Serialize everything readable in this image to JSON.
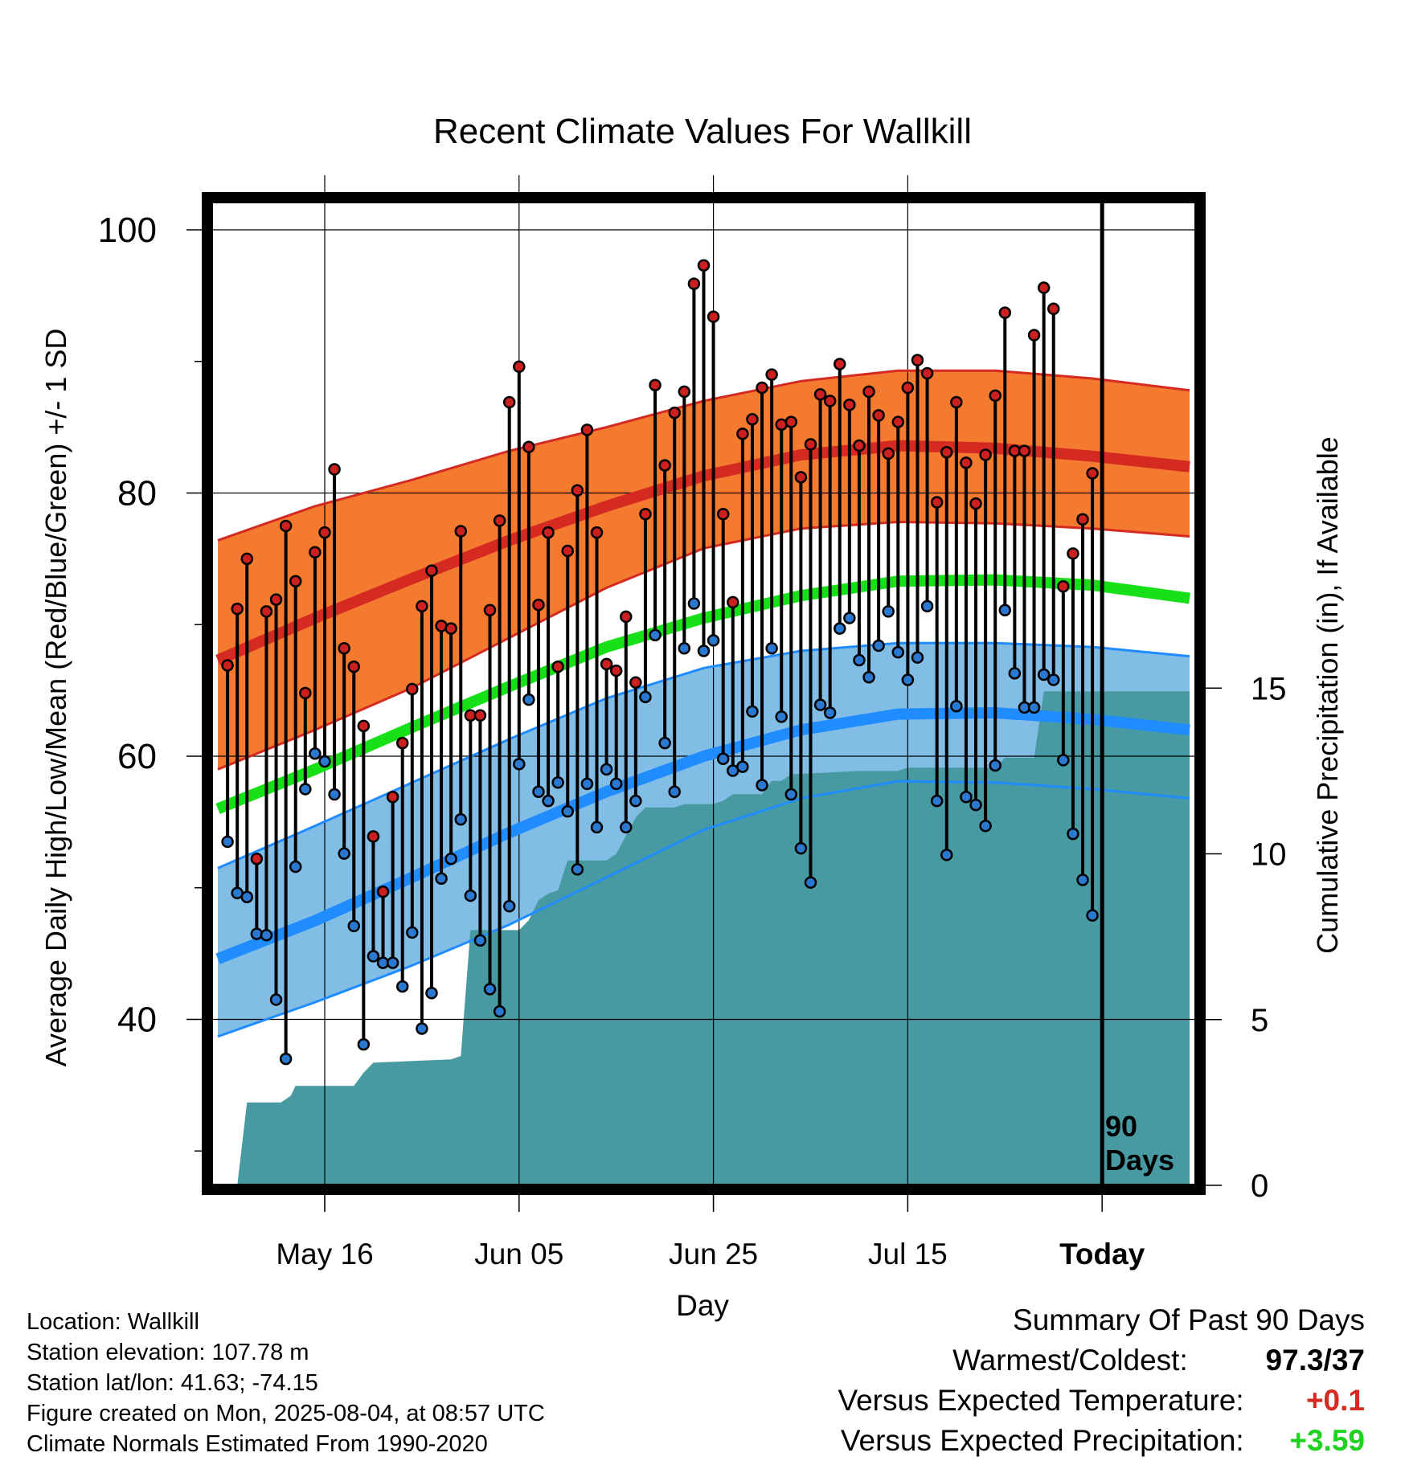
{
  "colors": {
    "high_band": "#f47a30",
    "high_line": "#d42a22",
    "mean_line": "#18e018",
    "low_band": "#82bde6",
    "low_line": "#1f8cff",
    "precip_fill": "#489aa2",
    "high_dot": "#cc1f1f",
    "low_dot": "#2a78d0",
    "temp_anom": "#d42a22",
    "precip_anom": "#1fd21f"
  },
  "chart_data": {
    "type": "line",
    "title": "Recent Climate Values For Wallkill",
    "xlabel": "Day",
    "ylabel_left": "Average Daily High/Low/Mean (Red/Blue/Green) +/- 1 SD",
    "ylabel_right": "Cumulative Precipitation (in), If Available",
    "x_ticks": [
      {
        "day": 11,
        "label": "May 16"
      },
      {
        "day": 31,
        "label": "Jun 05"
      },
      {
        "day": 51,
        "label": "Jun 25"
      },
      {
        "day": 71,
        "label": "Jul 15"
      },
      {
        "day": 91,
        "label": "Today"
      }
    ],
    "xlim": [
      0,
      100
    ],
    "ylim_left": [
      26,
      103
    ],
    "y_ticks_left": [
      40,
      60,
      80,
      100
    ],
    "y_minor_left": [
      30,
      50,
      70,
      90
    ],
    "ylim_right": [
      0,
      15
    ],
    "y_ticks_right": [
      0,
      5,
      10,
      15
    ],
    "today_marker": {
      "day": 91,
      "label_line1": "90",
      "label_line2": "Days"
    },
    "normals": {
      "days": [
        0,
        10,
        20,
        30,
        40,
        50,
        60,
        70,
        80,
        90,
        100
      ],
      "mean_high": [
        67.3,
        70.5,
        73.5,
        76.4,
        79.0,
        81.3,
        82.9,
        83.6,
        83.4,
        82.8,
        82.0
      ],
      "high_plus_sd": [
        76.4,
        79.0,
        81.0,
        83.2,
        85.0,
        87.0,
        88.5,
        89.3,
        89.3,
        88.7,
        87.8
      ],
      "high_minus_sd": [
        59.0,
        62.0,
        65.2,
        69.0,
        72.8,
        75.8,
        77.3,
        77.8,
        77.7,
        77.3,
        76.7
      ],
      "mean": [
        56.0,
        59.0,
        62.2,
        65.3,
        68.3,
        70.5,
        72.2,
        73.3,
        73.4,
        73.0,
        72.0
      ],
      "mean_low": [
        44.6,
        47.5,
        50.8,
        54.2,
        57.3,
        60.0,
        62.0,
        63.2,
        63.3,
        62.8,
        62.0
      ],
      "low_plus_sd": [
        51.5,
        54.7,
        58.0,
        61.3,
        64.4,
        66.7,
        68.0,
        68.6,
        68.6,
        68.3,
        67.6
      ],
      "low_minus_sd": [
        38.7,
        41.3,
        44.1,
        47.2,
        50.8,
        54.4,
        56.8,
        58.1,
        58.0,
        57.5,
        56.8
      ]
    },
    "series": [
      {
        "name": "High",
        "values": [
          66.9,
          71.2,
          75.0,
          52.2,
          71.0,
          71.9,
          77.5,
          73.3,
          64.8,
          75.5,
          77.0,
          81.8,
          68.2,
          66.8,
          62.3,
          53.9,
          49.7,
          56.9,
          61.0,
          65.1,
          71.4,
          74.1,
          69.9,
          69.7,
          77.1,
          63.1,
          63.1,
          71.1,
          77.9,
          86.9,
          89.6,
          83.5,
          71.5,
          77.0,
          66.8,
          75.6,
          80.2,
          84.8,
          77.0,
          67.0,
          66.5,
          70.6,
          65.6,
          78.4,
          88.2,
          82.1,
          86.1,
          87.7,
          95.9,
          97.3,
          93.4,
          78.4,
          71.7,
          84.5,
          85.6,
          88.0,
          89.0,
          85.2,
          85.4,
          81.2,
          83.7,
          87.5,
          87.0,
          89.8,
          86.7,
          83.6,
          87.7,
          85.9,
          83.0,
          85.4,
          88.0,
          90.1,
          89.1,
          79.3,
          83.1,
          86.9,
          82.3,
          79.2,
          82.9,
          87.4,
          93.7,
          83.2,
          83.2,
          92.0,
          95.6,
          94.0,
          72.9,
          75.4,
          78.0,
          81.5
        ]
      },
      {
        "name": "Low",
        "values": [
          53.5,
          49.6,
          49.3,
          46.5,
          46.4,
          41.5,
          37.0,
          51.6,
          57.5,
          60.2,
          59.6,
          57.1,
          52.6,
          47.1,
          38.1,
          44.8,
          44.3,
          44.3,
          42.5,
          46.6,
          39.3,
          42.0,
          50.7,
          52.2,
          55.2,
          49.4,
          46.0,
          42.3,
          40.6,
          48.6,
          59.4,
          64.3,
          57.3,
          56.6,
          58.0,
          55.8,
          51.4,
          57.9,
          54.6,
          59.0,
          57.9,
          54.6,
          56.6,
          64.5,
          69.2,
          61.0,
          57.3,
          68.2,
          71.6,
          68.0,
          68.8,
          59.8,
          58.9,
          59.2,
          63.4,
          57.8,
          68.2,
          63.0,
          57.1,
          53.0,
          50.4,
          63.9,
          63.3,
          69.7,
          70.5,
          67.3,
          66.0,
          68.4,
          71.0,
          67.9,
          65.8,
          67.5,
          71.4,
          56.6,
          52.5,
          63.8,
          56.9,
          56.3,
          54.7,
          59.3,
          71.1,
          66.3,
          63.7,
          63.7,
          66.2,
          65.8,
          59.7,
          54.1,
          50.6,
          47.9
        ]
      },
      {
        "name": "Cumulative Precipitation",
        "points": [
          [
            0,
            0
          ],
          [
            2,
            0
          ],
          [
            3,
            2.5
          ],
          [
            6.5,
            2.5
          ],
          [
            7.5,
            2.7
          ],
          [
            8,
            3.0
          ],
          [
            14,
            3.0
          ],
          [
            15,
            3.4
          ],
          [
            16,
            3.7
          ],
          [
            24,
            3.8
          ],
          [
            25,
            3.9
          ],
          [
            26,
            7.7
          ],
          [
            31,
            7.7
          ],
          [
            32,
            8.0
          ],
          [
            33,
            8.6
          ],
          [
            34,
            8.8
          ],
          [
            35,
            8.9
          ],
          [
            36,
            9.8
          ],
          [
            40,
            9.8
          ],
          [
            41,
            10.0
          ],
          [
            43,
            11.1
          ],
          [
            44,
            11.4
          ],
          [
            47,
            11.4
          ],
          [
            48,
            11.5
          ],
          [
            51,
            11.5
          ],
          [
            52,
            11.6
          ],
          [
            53,
            11.8
          ],
          [
            56,
            11.8
          ],
          [
            57,
            12.2
          ],
          [
            58,
            12.2
          ],
          [
            59,
            12.4
          ],
          [
            66,
            12.5
          ],
          [
            70,
            12.5
          ],
          [
            71,
            12.6
          ],
          [
            80,
            12.6
          ],
          [
            81,
            12.9
          ],
          [
            84,
            12.9
          ],
          [
            85,
            14.9
          ],
          [
            100,
            14.9
          ]
        ]
      }
    ]
  },
  "info": {
    "location": "Location: Wallkill",
    "elevation": "Station elevation: 107.78 m",
    "latlon": "Station lat/lon: 41.63; -74.15",
    "created": "Figure created on Mon, 2025-08-04, at 08:57 UTC",
    "normals": "Climate Normals Estimated From 1990-2020"
  },
  "summary": {
    "title": "Summary Of Past 90 Days",
    "warmest_label": "Warmest/Coldest:",
    "warmest_value": "97.3/37",
    "temp_label": "Versus Expected Temperature:",
    "temp_value": "+0.1",
    "precip_label": "Versus Expected Precipitation:",
    "precip_value": "+3.59"
  }
}
